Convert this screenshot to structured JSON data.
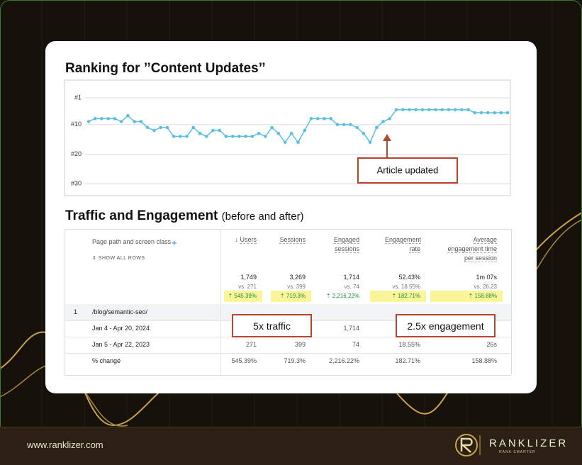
{
  "chart_data": {
    "type": "line",
    "title": "Ranking for ’’Content Updates’’",
    "values": [
      9,
      8,
      8,
      8,
      8,
      9,
      7,
      9,
      9,
      11,
      12,
      11,
      11,
      14,
      14,
      14,
      11,
      13,
      14,
      12,
      12,
      14,
      14,
      14,
      14,
      14,
      13,
      14,
      11,
      13,
      16,
      13,
      16,
      12,
      8,
      8,
      8,
      8,
      10,
      10,
      10,
      11,
      13,
      16,
      11,
      9,
      8,
      5,
      5,
      5,
      5,
      5,
      5,
      5,
      5,
      5,
      5,
      5,
      5,
      6,
      6,
      6,
      6,
      6,
      6
    ],
    "color": "#5bbfe0",
    "ylim": [
      -5,
      34
    ],
    "y_inverted": true,
    "yticks": [
      {
        "value": 1,
        "label": "#1"
      },
      {
        "value": 10,
        "label": "#10"
      },
      {
        "value": 20,
        "label": "#20"
      },
      {
        "value": 30,
        "label": "#30"
      }
    ],
    "grid": true,
    "annotation": "Article updated"
  },
  "section_title": "Traffic and Engagement",
  "section_subtitle": "(before and after)",
  "table": {
    "dimension_header": "Page path and screen class",
    "show_all_rows": "SHOW ALL ROWS",
    "columns": [
      "Users",
      "Sessions",
      "Engaged sessions",
      "Engagement rate",
      "Average engagement time per session"
    ],
    "totals": [
      {
        "value": "1,749",
        "comparison": "vs. 271",
        "change": "545.39%"
      },
      {
        "value": "3,269",
        "comparison": "vs. 399",
        "change": "719.3%"
      },
      {
        "value": "1,714",
        "comparison": "vs. 74",
        "change": "2,216.22%"
      },
      {
        "value": "52.43%",
        "comparison": "vs. 18.55%",
        "change": "182.71%"
      },
      {
        "value": "1m 07s",
        "comparison": "vs. 26.23",
        "change": "158.88%"
      }
    ],
    "rows": [
      {
        "index": "1",
        "label": "/blog/semantic-seo/"
      },
      {
        "label": "Jan 4 - Apr 20, 2024",
        "cells": [
          null,
          null,
          "1,714",
          null,
          null
        ]
      },
      {
        "label": "Jan 5 - Apr 22, 2023",
        "cells": [
          "271",
          "399",
          "74",
          "18.55%",
          "26s"
        ]
      },
      {
        "label": "% change",
        "cells": [
          "545.39%",
          "719.3%",
          "2,216.22%",
          "182.71%",
          "158.88%"
        ]
      }
    ]
  },
  "callouts": [
    "5x traffic",
    "2.5x engagement"
  ],
  "footer": {
    "url": "www.ranklizer.com",
    "brand": "RANKLIZER",
    "tagline": "RANK SMARTER"
  }
}
